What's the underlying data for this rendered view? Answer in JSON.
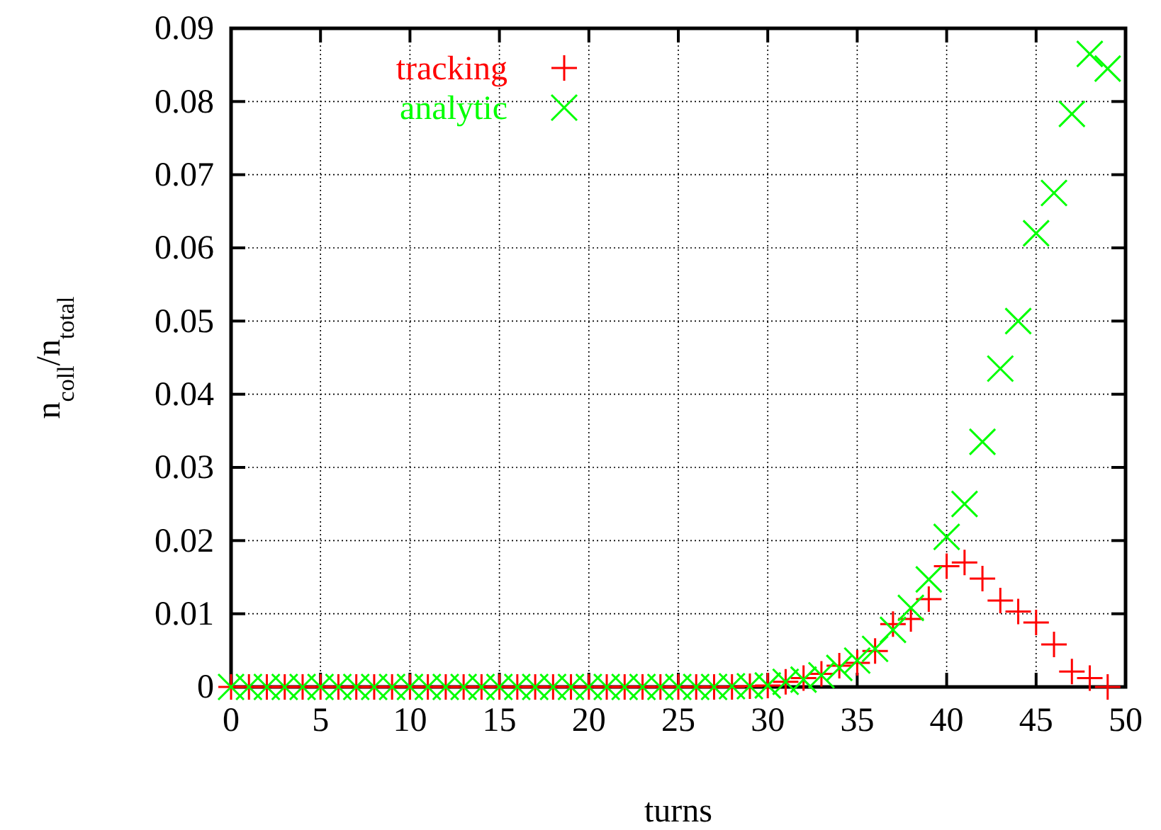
{
  "chart_data": {
    "type": "scatter",
    "xlabel": "turns",
    "ylabel": "n$_{coll}$/n$_{total}$",
    "x": [
      0,
      1,
      2,
      3,
      4,
      5,
      6,
      7,
      8,
      9,
      10,
      11,
      12,
      13,
      14,
      15,
      16,
      17,
      18,
      19,
      20,
      21,
      22,
      23,
      24,
      25,
      26,
      27,
      28,
      29,
      30,
      31,
      32,
      33,
      34,
      35,
      36,
      37,
      38,
      39,
      40,
      41,
      42,
      43,
      44,
      45,
      46,
      47,
      48,
      49
    ],
    "series": [
      {
        "name": "tracking",
        "color": "#ff0000",
        "marker": "plus",
        "values": [
          0,
          0,
          0,
          0,
          0,
          0,
          0,
          0,
          0,
          0,
          0,
          0,
          0,
          0,
          0,
          0,
          0,
          0,
          0,
          0,
          0,
          0,
          0,
          0,
          0,
          0,
          0,
          0,
          0,
          0.0001,
          0.0002,
          0.0007,
          0.0012,
          0.0018,
          0.0029,
          0.0033,
          0.0049,
          0.0086,
          0.0093,
          0.012,
          0.0165,
          0.017,
          0.0148,
          0.0118,
          0.0103,
          0.0088,
          0.0058,
          0.0021,
          0.0012,
          0
        ]
      },
      {
        "name": "analytic",
        "color": "#00ff00",
        "marker": "cross",
        "values": [
          0,
          0,
          0,
          0,
          0,
          0,
          0,
          0,
          0,
          0,
          0,
          0,
          0,
          0,
          0,
          0,
          0,
          0,
          0,
          0,
          0,
          0,
          0,
          0,
          0,
          0,
          0,
          0,
          0.0001,
          0.0001,
          0.0002,
          0.0007,
          0.001,
          0.0016,
          0.0026,
          0.0036,
          0.0052,
          0.0078,
          0.0108,
          0.0147,
          0.0205,
          0.025,
          0.0335,
          0.0435,
          0.05,
          0.062,
          0.0675,
          0.0783,
          0.0865,
          0.0845
        ]
      }
    ],
    "xlim": [
      0,
      50
    ],
    "xticks": [
      0,
      5,
      10,
      15,
      20,
      25,
      30,
      35,
      40,
      45,
      50
    ],
    "ylim": [
      0,
      0.09
    ],
    "yticks": [
      0,
      0.01,
      0.02,
      0.03,
      0.04,
      0.05,
      0.06,
      0.07,
      0.08,
      0.09
    ],
    "grid": true,
    "legend": "top left"
  }
}
